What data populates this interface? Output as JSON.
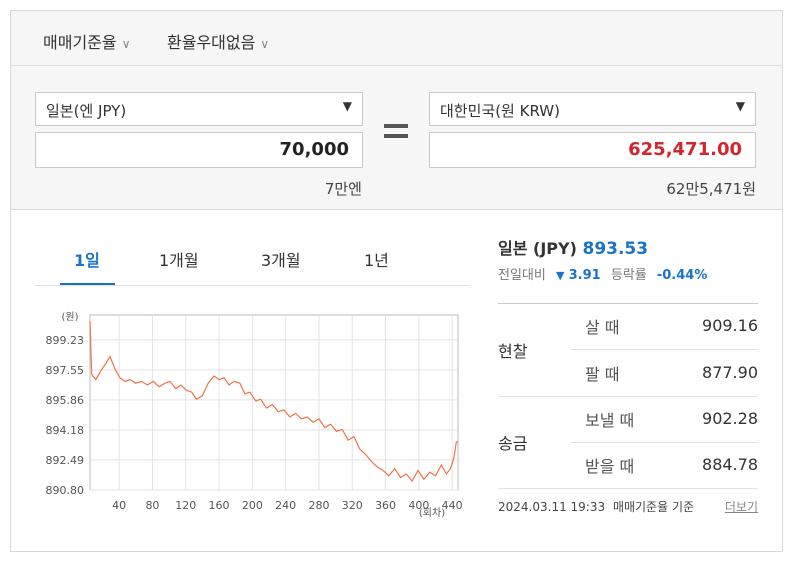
{
  "header": {
    "options": [
      "매매기준율",
      "환율우대없음"
    ]
  },
  "converter": {
    "from": {
      "currency": "일본(엔 JPY)",
      "amount": "70,000",
      "hint": "7만엔"
    },
    "to": {
      "currency": "대한민국(원 KRW)",
      "amount": "625,471.00",
      "hint": "62만5,471원"
    }
  },
  "tabs": [
    "1일",
    "1개월",
    "3개월",
    "1년"
  ],
  "info": {
    "name": "일본 (JPY)",
    "price": "893.53",
    "change_label": "전일대비",
    "change": "3.91",
    "rate_label": "등락률",
    "rate": "-0.44%"
  },
  "table": {
    "groups": [
      {
        "label": "현찰",
        "rows": [
          [
            "살 때",
            "909.16"
          ],
          [
            "팔 때",
            "877.90"
          ]
        ]
      },
      {
        "label": "송금",
        "rows": [
          [
            "보낼 때",
            "902.28"
          ],
          [
            "받을 때",
            "884.78"
          ]
        ]
      }
    ]
  },
  "footer": {
    "timestamp": "2024.03.11 19:33",
    "basis": "매매기준율 기준",
    "more": "더보기"
  },
  "chart_data": {
    "type": "line",
    "y_label": "(원)",
    "x_label": "(회차)",
    "color": "#f0724a",
    "grid": true,
    "x": [
      5,
      7,
      12,
      18,
      24,
      29,
      35,
      41,
      47,
      53,
      60,
      67,
      74,
      81,
      88,
      95,
      101,
      108,
      114,
      121,
      127,
      133,
      140,
      147,
      154,
      160,
      166,
      172,
      178,
      185,
      191,
      197,
      204,
      210,
      217,
      224,
      231,
      238,
      245,
      252,
      259,
      266,
      273,
      280,
      287,
      294,
      301,
      308,
      315,
      322,
      329,
      336,
      343,
      350,
      357,
      364,
      371,
      378,
      385,
      392,
      399,
      406,
      413,
      420,
      427,
      433,
      438,
      442,
      445,
      447
    ],
    "values": [
      900.3,
      897.3,
      897.0,
      897.5,
      897.9,
      898.3,
      897.6,
      897.1,
      896.9,
      897.0,
      896.8,
      896.9,
      896.7,
      896.9,
      896.6,
      896.8,
      896.9,
      896.5,
      896.7,
      896.4,
      896.3,
      895.9,
      896.1,
      896.8,
      897.2,
      897.0,
      897.1,
      896.7,
      896.9,
      896.8,
      896.2,
      896.3,
      895.8,
      895.9,
      895.4,
      895.6,
      895.2,
      895.3,
      894.9,
      895.1,
      894.8,
      894.9,
      894.6,
      894.8,
      894.3,
      894.5,
      894.1,
      894.2,
      893.6,
      893.8,
      893.1,
      892.8,
      892.4,
      892.1,
      891.9,
      891.6,
      892.0,
      891.5,
      891.7,
      891.3,
      891.9,
      891.4,
      891.8,
      891.6,
      892.2,
      891.7,
      892.0,
      892.6,
      893.5,
      893.5
    ],
    "xlim": [
      5,
      447
    ],
    "ylim": [
      890.8,
      900.63
    ],
    "xticks": [
      40,
      80,
      120,
      160,
      200,
      240,
      280,
      320,
      360,
      400,
      440
    ],
    "yticks": [
      {
        "value": 890.8,
        "label": "890.80"
      },
      892.49,
      894.18,
      895.86,
      897.55,
      899.23
    ]
  }
}
